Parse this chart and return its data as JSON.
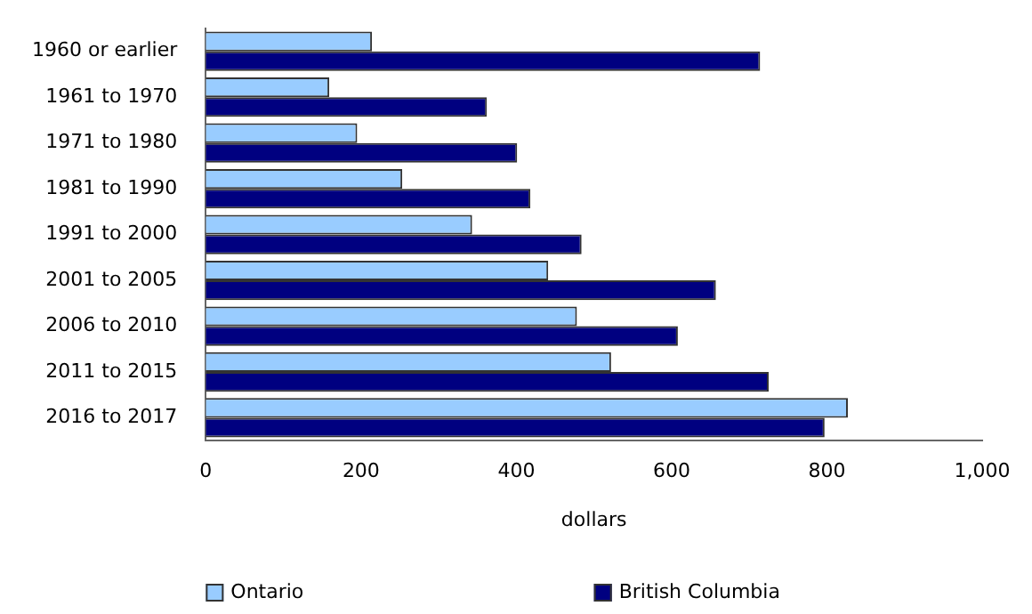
{
  "chart_data": {
    "type": "bar",
    "orientation": "horizontal",
    "xlabel": "dollars",
    "categories": [
      "1960 or earlier",
      "1961 to 1970",
      "1971 to 1980",
      "1981 to 1990",
      "1991 to 2000",
      "2001 to 2005",
      "2006 to 2010",
      "2011 to 2015",
      "2016 to 2017"
    ],
    "series": [
      {
        "name": "Ontario",
        "color": "#99ccff",
        "values": [
          214,
          159,
          195,
          253,
          343,
          441,
          478,
          522,
          827
        ]
      },
      {
        "name": "British Columbia",
        "color": "#000080",
        "values": [
          714,
          362,
          401,
          418,
          484,
          657,
          608,
          725,
          797
        ]
      }
    ],
    "xlim": [
      0,
      1000
    ],
    "xticks": [
      0,
      200,
      400,
      600,
      800,
      {
        "value": 1000,
        "label": "1,000"
      }
    ],
    "grid": false,
    "legend": "bottom"
  }
}
